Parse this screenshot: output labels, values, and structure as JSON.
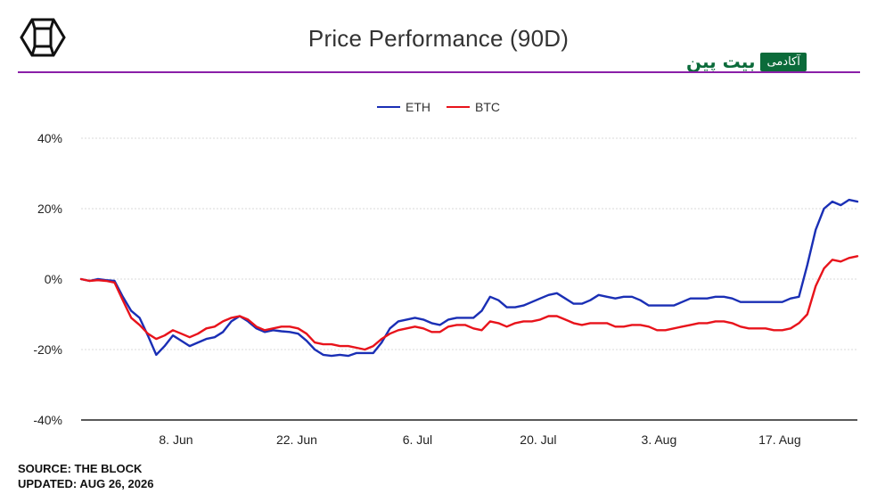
{
  "header": {
    "title": "Price Performance (90D)",
    "brand_text": "بیت پین",
    "brand_badge": "آکادمی",
    "logo_icon": "the-block-cube-logo"
  },
  "footer": {
    "source": "SOURCE: THE BLOCK",
    "updated": "UPDATED: AUG 26, 2026"
  },
  "colors": {
    "eth": "#1a2fb5",
    "btc": "#e8131b",
    "accent_rule": "#8a1fa8",
    "brand_green": "#0b6b3a"
  },
  "chart_data": {
    "type": "line",
    "title": "Price Performance (90D)",
    "ylim": [
      -40,
      40
    ],
    "yticks": [
      40,
      20,
      0,
      -20,
      -40
    ],
    "ytick_labels": [
      "40%",
      "20%",
      "0%",
      "-20%",
      "-40%"
    ],
    "x_tick_labels": [
      "8. Jun",
      "22. Jun",
      "6. Jul",
      "20. Jul",
      "3. Aug",
      "17. Aug"
    ],
    "x_tick_dates": [
      "2026-06-08",
      "2026-06-22",
      "2026-07-06",
      "2026-07-20",
      "2026-08-03",
      "2026-08-17"
    ],
    "x_start_date": "2026-05-28",
    "x_end_date": "2026-08-26",
    "grid": true,
    "legend_position": "top-center",
    "series": [
      {
        "name": "ETH",
        "color": "#1a2fb5",
        "values": [
          0,
          -0.5,
          0,
          -0.3,
          -0.5,
          -5,
          -9,
          -11,
          -16,
          -21.5,
          -19,
          -16,
          -17.5,
          -19,
          -18,
          -17,
          -16.5,
          -15,
          -12,
          -10.5,
          -12,
          -14,
          -15,
          -14.5,
          -14.8,
          -15,
          -15.5,
          -17.5,
          -20,
          -21.5,
          -21.8,
          -21.5,
          -21.8,
          -21,
          -21,
          -21,
          -18,
          -14,
          -12,
          -11.5,
          -11,
          -11.5,
          -12.5,
          -13,
          -11.5,
          -11,
          -11,
          -11,
          -9,
          -5,
          -6,
          -8,
          -8,
          -7.5,
          -6.5,
          -5.5,
          -4.5,
          -4,
          -5.5,
          -7,
          -7,
          -6,
          -4.5,
          -5,
          -5.5,
          -5,
          -5,
          -6,
          -7.5,
          -7.5,
          -7.5,
          -7.5,
          -6.5,
          -5.5,
          -5.5,
          -5.5,
          -5,
          -5,
          -5.5,
          -6.5,
          -6.5,
          -6.5,
          -6.5,
          -6.5,
          -6.5,
          -5.5,
          -5,
          4,
          14,
          20,
          22,
          21,
          22.5,
          22
        ]
      },
      {
        "name": "BTC",
        "color": "#e8131b",
        "values": [
          0,
          -0.5,
          -0.3,
          -0.5,
          -1,
          -6,
          -11,
          -13,
          -15.5,
          -17,
          -16,
          -14.5,
          -15.5,
          -16.5,
          -15.5,
          -14,
          -13.5,
          -12,
          -11,
          -10.5,
          -11.5,
          -13.5,
          -14.5,
          -14,
          -13.5,
          -13.5,
          -14,
          -15.5,
          -18,
          -18.5,
          -18.5,
          -19,
          -19,
          -19.5,
          -20,
          -19,
          -17,
          -15.5,
          -14.5,
          -14,
          -13.5,
          -14,
          -15,
          -15,
          -13.5,
          -13,
          -13,
          -14,
          -14.5,
          -12,
          -12.5,
          -13.5,
          -12.5,
          -12,
          -12,
          -11.5,
          -10.5,
          -10.5,
          -11.5,
          -12.5,
          -13,
          -12.5,
          -12.5,
          -12.5,
          -13.5,
          -13.5,
          -13,
          -13,
          -13.5,
          -14.5,
          -14.5,
          -14,
          -13.5,
          -13,
          -12.5,
          -12.5,
          -12,
          -12,
          -12.5,
          -13.5,
          -14,
          -14,
          -14,
          -14.5,
          -14.5,
          -14,
          -12.5,
          -10,
          -2,
          3,
          5.5,
          5,
          6,
          6.5
        ]
      }
    ]
  }
}
